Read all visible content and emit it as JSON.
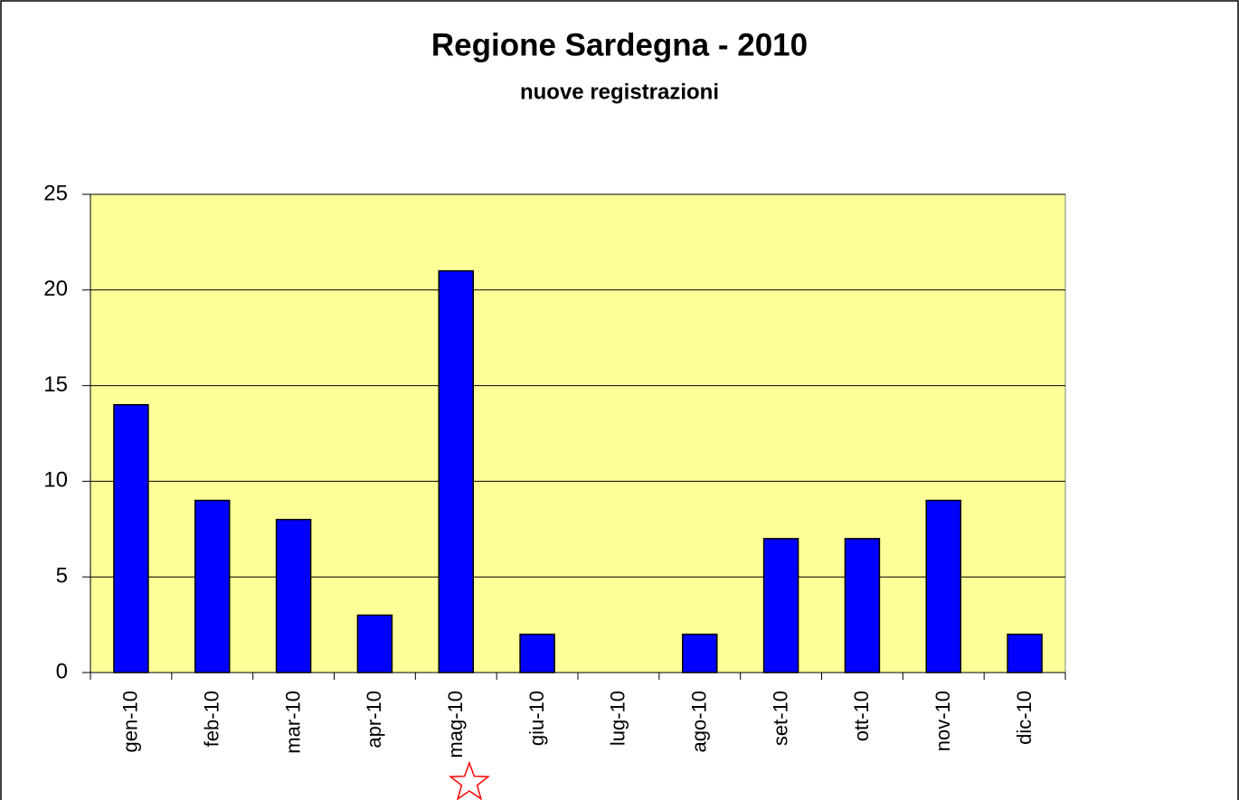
{
  "chart_data": {
    "type": "bar",
    "title": "Regione Sardegna - 2010",
    "subtitle": "nuove registrazioni",
    "categories": [
      "gen-10",
      "feb-10",
      "mar-10",
      "apr-10",
      "mag-10",
      "giu-10",
      "lug-10",
      "ago-10",
      "set-10",
      "ott-10",
      "nov-10",
      "dic-10"
    ],
    "values": [
      14,
      9,
      8,
      3,
      21,
      2,
      0,
      2,
      7,
      7,
      9,
      2
    ],
    "color": "#0000ff",
    "plot_background": "#ffff99",
    "ylim": [
      0,
      25
    ],
    "yticks": [
      0,
      5,
      10,
      15,
      20,
      25
    ],
    "grid": true
  }
}
